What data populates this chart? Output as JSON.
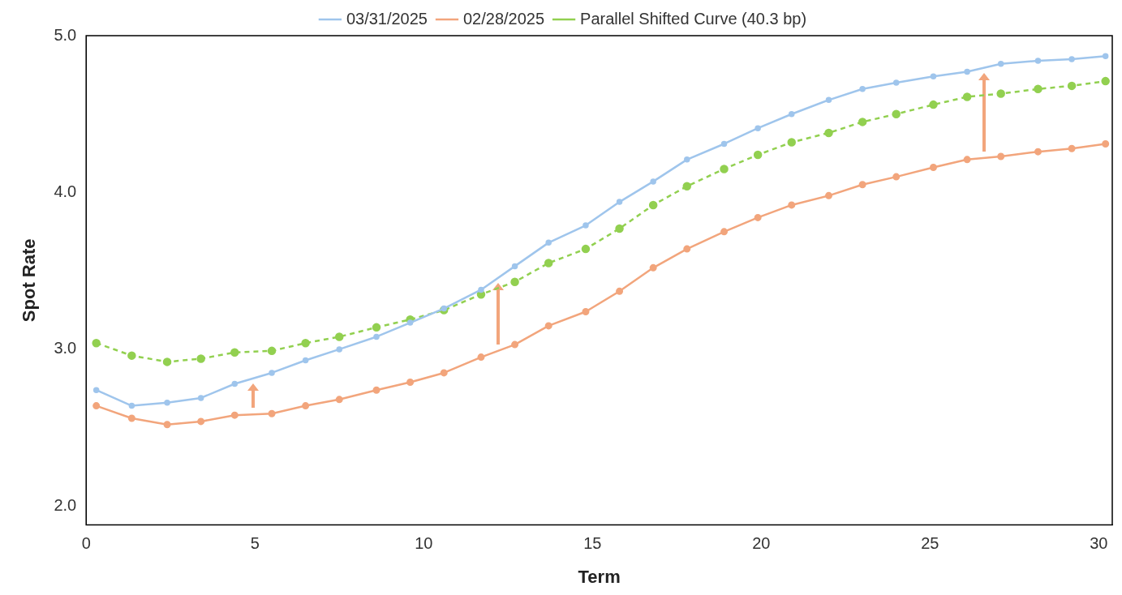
{
  "chart_data": {
    "type": "line",
    "xlabel": "Term",
    "ylabel": "Spot Rate",
    "x": [
      0.3,
      1.35,
      2.4,
      3.4,
      4.4,
      5.5,
      6.5,
      7.5,
      8.6,
      9.6,
      10.6,
      11.7,
      12.7,
      13.7,
      14.8,
      15.8,
      16.8,
      17.8,
      18.9,
      19.9,
      20.9,
      22.0,
      23.0,
      24.0,
      25.1,
      26.1,
      27.1,
      28.2,
      29.2,
      30.2
    ],
    "xlim": [
      0,
      30.4
    ],
    "xticks": [
      0,
      5,
      10,
      15,
      20,
      25,
      30
    ],
    "ylim": [
      1.88,
      5.0
    ],
    "yticks": [
      {
        "value": 2,
        "label": "2.0"
      },
      {
        "value": 3,
        "label": "3.0"
      },
      {
        "value": 4,
        "label": "4.0"
      },
      {
        "value": 5,
        "label": "5.0"
      }
    ],
    "grid": false,
    "legend": "top",
    "marker": "circle",
    "series": [
      {
        "name": "03/31/2025",
        "color": "#9fc5ec",
        "line_style": "solid",
        "values": [
          2.74,
          2.64,
          2.66,
          2.69,
          2.78,
          2.85,
          2.93,
          3.0,
          3.08,
          3.17,
          3.26,
          3.38,
          3.53,
          3.68,
          3.79,
          3.94,
          4.07,
          4.21,
          4.31,
          4.41,
          4.5,
          4.59,
          4.66,
          4.7,
          4.74,
          4.77,
          4.82,
          4.84,
          4.85,
          4.87
        ]
      },
      {
        "name": "02/28/2025",
        "color": "#f2a57c",
        "line_style": "solid",
        "values": [
          2.64,
          2.56,
          2.52,
          2.54,
          2.58,
          2.59,
          2.64,
          2.68,
          2.74,
          2.79,
          2.85,
          2.95,
          3.03,
          3.15,
          3.24,
          3.37,
          3.52,
          3.64,
          3.75,
          3.84,
          3.92,
          3.98,
          4.05,
          4.1,
          4.16,
          4.21,
          4.23,
          4.26,
          4.28,
          4.31
        ]
      },
      {
        "name": "Parallel Shifted Curve (40.3 bp)",
        "color": "#92d050",
        "line_style": "dashed",
        "values": [
          3.04,
          2.96,
          2.92,
          2.94,
          2.98,
          2.99,
          3.04,
          3.08,
          3.14,
          3.19,
          3.25,
          3.35,
          3.43,
          3.55,
          3.64,
          3.77,
          3.92,
          4.04,
          4.15,
          4.24,
          4.32,
          4.38,
          4.45,
          4.5,
          4.56,
          4.61,
          4.63,
          4.66,
          4.68,
          4.71
        ]
      }
    ]
  }
}
